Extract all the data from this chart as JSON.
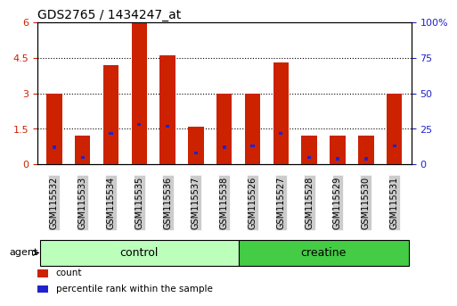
{
  "title": "GDS2765 / 1434247_at",
  "categories": [
    "GSM115532",
    "GSM115533",
    "GSM115534",
    "GSM115535",
    "GSM115536",
    "GSM115537",
    "GSM115538",
    "GSM115526",
    "GSM115527",
    "GSM115528",
    "GSM115529",
    "GSM115530",
    "GSM115531"
  ],
  "count_values": [
    3.0,
    1.2,
    4.2,
    6.0,
    4.6,
    1.6,
    3.0,
    3.0,
    4.3,
    1.2,
    1.2,
    1.2,
    3.0
  ],
  "percentile_values": [
    0.12,
    0.05,
    0.22,
    0.28,
    0.27,
    0.08,
    0.12,
    0.13,
    0.22,
    0.05,
    0.04,
    0.04,
    0.13
  ],
  "bar_color": "#cc2200",
  "blue_color": "#2222cc",
  "ylim_left": [
    0,
    6
  ],
  "ylim_right": [
    0,
    100
  ],
  "yticks_left": [
    0,
    1.5,
    3.0,
    4.5,
    6.0
  ],
  "ytick_labels_left": [
    "0",
    "1.5",
    "3",
    "4.5",
    "6"
  ],
  "yticks_right": [
    0,
    25,
    50,
    75,
    100
  ],
  "ytick_labels_right": [
    "0",
    "25",
    "50",
    "75",
    "100%"
  ],
  "groups": [
    {
      "label": "control",
      "indices": [
        0,
        1,
        2,
        3,
        4,
        5,
        6
      ],
      "color": "#bbffbb"
    },
    {
      "label": "creatine",
      "indices": [
        7,
        8,
        9,
        10,
        11,
        12
      ],
      "color": "#44cc44"
    }
  ],
  "group_label": "agent",
  "legend_items": [
    {
      "label": "count",
      "color": "#cc2200"
    },
    {
      "label": "percentile rank within the sample",
      "color": "#2222cc"
    }
  ],
  "background_plot": "#ffffff",
  "tick_label_bg": "#cccccc",
  "bar_width": 0.55
}
